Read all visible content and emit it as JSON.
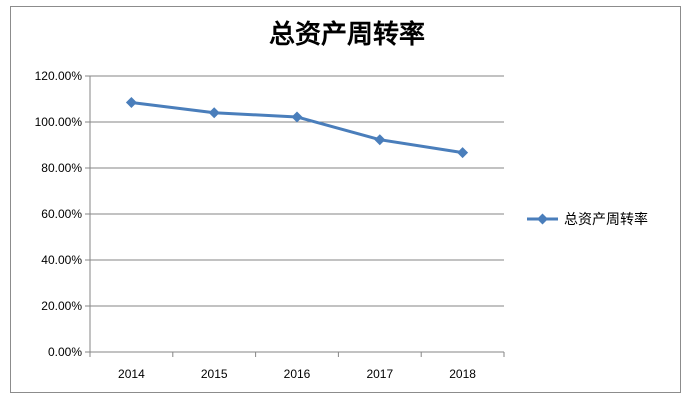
{
  "chart_data": {
    "type": "line",
    "title": "总资产周转率",
    "categories": [
      "2014",
      "2015",
      "2016",
      "2017",
      "2018"
    ],
    "series": [
      {
        "name": "总资产周转率",
        "values": [
          108.5,
          104.0,
          102.2,
          92.3,
          86.7
        ],
        "color": "#4a7ebb",
        "marker": "diamond"
      }
    ],
    "ylim": [
      0,
      120
    ],
    "yticks": [
      0,
      20,
      40,
      60,
      80,
      100,
      120
    ],
    "ytick_labels": [
      "0.00%",
      "20.00%",
      "40.00%",
      "60.00%",
      "80.00%",
      "100.00%",
      "120.00%"
    ],
    "xlabel": "",
    "ylabel": "",
    "grid": true,
    "legend": "right"
  }
}
